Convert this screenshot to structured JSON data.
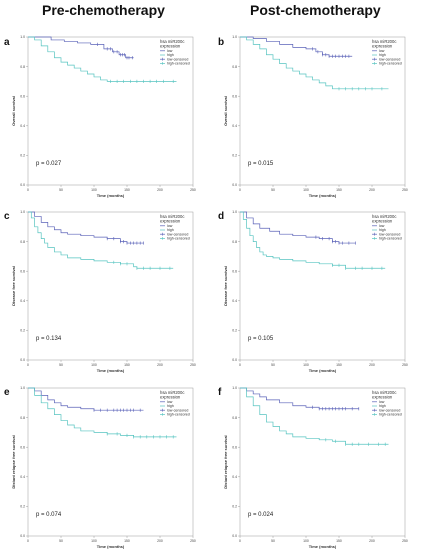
{
  "headers": {
    "left": "Pre-chemotherapy",
    "right": "Post-chemotherapy"
  },
  "colors": {
    "low": "#5a62b8",
    "high": "#56c4c0"
  },
  "legend": {
    "title_line1": "hsa miR200c",
    "title_line2": "expression",
    "entries": [
      "low",
      "high",
      "low-censored",
      "high-censored"
    ]
  },
  "chart_data": [
    {
      "type": "line",
      "panel": "a",
      "xlabel": "Time (months)",
      "ylabel": "Overall survival",
      "p_text": "p = 0.027",
      "xlim": [
        0,
        250
      ],
      "ylim": [
        0,
        1.0
      ],
      "xticks": [
        "0",
        "50",
        "100",
        "150",
        "200",
        "250"
      ],
      "yticks": [
        "0.0",
        "0.2",
        "0.4",
        "0.6",
        "0.8",
        "1.0"
      ],
      "series": [
        {
          "name": "low",
          "x": [
            0,
            15,
            35,
            55,
            75,
            95,
            115,
            128,
            138,
            148,
            160
          ],
          "y": [
            1.0,
            1.0,
            0.98,
            0.97,
            0.96,
            0.95,
            0.92,
            0.9,
            0.88,
            0.86,
            0.86
          ],
          "censored_x": [
            105,
            120,
            125,
            130,
            135,
            140,
            143,
            146,
            150,
            153,
            158
          ]
        },
        {
          "name": "high",
          "x": [
            0,
            10,
            20,
            30,
            40,
            50,
            60,
            70,
            80,
            90,
            100,
            110,
            120,
            130,
            225
          ],
          "y": [
            1.0,
            0.98,
            0.94,
            0.9,
            0.86,
            0.83,
            0.81,
            0.79,
            0.77,
            0.75,
            0.73,
            0.71,
            0.7,
            0.7,
            0.7
          ],
          "censored_x": [
            125,
            135,
            145,
            155,
            165,
            175,
            185,
            195,
            205,
            220
          ]
        }
      ]
    },
    {
      "type": "line",
      "panel": "b",
      "xlabel": "Time (months)",
      "ylabel": "Overall survival",
      "p_text": "p = 0.015",
      "xlim": [
        0,
        250
      ],
      "ylim": [
        0,
        1.0
      ],
      "xticks": [
        "0",
        "50",
        "100",
        "150",
        "200",
        "250"
      ],
      "yticks": [
        "0.0",
        "0.2",
        "0.4",
        "0.6",
        "0.8",
        "1.0"
      ],
      "series": [
        {
          "name": "low",
          "x": [
            0,
            20,
            40,
            60,
            80,
            100,
            115,
            125,
            135,
            170
          ],
          "y": [
            1.0,
            0.99,
            0.97,
            0.95,
            0.93,
            0.92,
            0.9,
            0.88,
            0.87,
            0.87
          ],
          "censored_x": [
            110,
            118,
            125,
            130,
            135,
            140,
            145,
            150,
            155,
            160,
            165
          ]
        },
        {
          "name": "high",
          "x": [
            0,
            10,
            20,
            30,
            40,
            50,
            60,
            70,
            80,
            90,
            100,
            110,
            120,
            130,
            140,
            150,
            225
          ],
          "y": [
            1.0,
            0.98,
            0.95,
            0.92,
            0.88,
            0.85,
            0.82,
            0.79,
            0.77,
            0.75,
            0.73,
            0.71,
            0.69,
            0.67,
            0.65,
            0.65,
            0.65
          ],
          "censored_x": [
            150,
            160,
            170,
            180,
            190,
            200,
            215
          ]
        }
      ]
    },
    {
      "type": "line",
      "panel": "c",
      "xlabel": "Time (months)",
      "ylabel": "Disease free survival",
      "p_text": "p = 0.134",
      "xlim": [
        0,
        250
      ],
      "ylim": [
        0,
        1.0
      ],
      "xticks": [
        "0",
        "50",
        "100",
        "150",
        "200",
        "250"
      ],
      "yticks": [
        "0.0",
        "0.2",
        "0.4",
        "0.6",
        "0.8",
        "1.0"
      ],
      "series": [
        {
          "name": "low",
          "x": [
            0,
            10,
            20,
            30,
            40,
            50,
            60,
            80,
            100,
            120,
            140,
            150,
            175
          ],
          "y": [
            1.0,
            0.97,
            0.93,
            0.9,
            0.88,
            0.86,
            0.85,
            0.84,
            0.83,
            0.82,
            0.8,
            0.79,
            0.79
          ],
          "censored_x": [
            120,
            130,
            140,
            145,
            150,
            155,
            160,
            165,
            170,
            175
          ]
        },
        {
          "name": "high",
          "x": [
            0,
            5,
            10,
            15,
            20,
            25,
            30,
            40,
            50,
            60,
            80,
            100,
            120,
            140,
            160,
            165,
            220
          ],
          "y": [
            1.0,
            0.96,
            0.9,
            0.86,
            0.82,
            0.79,
            0.76,
            0.73,
            0.71,
            0.69,
            0.68,
            0.67,
            0.66,
            0.65,
            0.63,
            0.62,
            0.62
          ],
          "censored_x": [
            130,
            140,
            150,
            165,
            175,
            185,
            200,
            215
          ]
        }
      ]
    },
    {
      "type": "line",
      "panel": "d",
      "xlabel": "Time (months)",
      "ylabel": "Disease free survival",
      "p_text": "p = 0.105",
      "xlim": [
        0,
        250
      ],
      "ylim": [
        0,
        1.0
      ],
      "xticks": [
        "0",
        "50",
        "100",
        "150",
        "200",
        "250"
      ],
      "yticks": [
        "0.0",
        "0.2",
        "0.4",
        "0.6",
        "0.8",
        "1.0"
      ],
      "series": [
        {
          "name": "low",
          "x": [
            0,
            10,
            20,
            30,
            45,
            60,
            80,
            100,
            120,
            140,
            150,
            175
          ],
          "y": [
            1.0,
            0.96,
            0.92,
            0.89,
            0.87,
            0.85,
            0.84,
            0.83,
            0.82,
            0.8,
            0.79,
            0.79
          ],
          "censored_x": [
            115,
            125,
            135,
            140,
            145,
            150,
            155,
            165,
            175
          ]
        },
        {
          "name": "high",
          "x": [
            0,
            5,
            10,
            15,
            20,
            25,
            30,
            35,
            40,
            50,
            60,
            80,
            100,
            120,
            140,
            160,
            165,
            220
          ],
          "y": [
            1.0,
            0.95,
            0.89,
            0.84,
            0.8,
            0.76,
            0.73,
            0.71,
            0.7,
            0.69,
            0.68,
            0.67,
            0.66,
            0.65,
            0.64,
            0.62,
            0.62,
            0.62
          ],
          "censored_x": [
            140,
            150,
            160,
            175,
            185,
            200,
            215
          ]
        }
      ]
    },
    {
      "type": "line",
      "panel": "e",
      "xlabel": "Time (months)",
      "ylabel": "Distant relapse free survival",
      "p_text": "p = 0.074",
      "xlim": [
        0,
        250
      ],
      "ylim": [
        0,
        1.0
      ],
      "xticks": [
        "0",
        "50",
        "100",
        "150",
        "200",
        "250"
      ],
      "yticks": [
        "0.0",
        "0.2",
        "0.4",
        "0.6",
        "0.8",
        "1.0"
      ],
      "series": [
        {
          "name": "low",
          "x": [
            0,
            10,
            20,
            30,
            40,
            50,
            60,
            80,
            100,
            110,
            175
          ],
          "y": [
            1.0,
            0.98,
            0.95,
            0.92,
            0.9,
            0.88,
            0.87,
            0.86,
            0.85,
            0.85,
            0.85
          ],
          "censored_x": [
            100,
            110,
            120,
            130,
            135,
            140,
            145,
            150,
            155,
            160,
            170
          ]
        },
        {
          "name": "high",
          "x": [
            0,
            10,
            20,
            30,
            40,
            50,
            60,
            70,
            80,
            100,
            120,
            140,
            160,
            170,
            225
          ],
          "y": [
            1.0,
            0.95,
            0.9,
            0.86,
            0.82,
            0.78,
            0.75,
            0.73,
            0.71,
            0.7,
            0.69,
            0.68,
            0.67,
            0.67,
            0.67
          ],
          "censored_x": [
            120,
            135,
            150,
            160,
            170,
            180,
            190,
            200,
            210,
            220
          ]
        }
      ]
    },
    {
      "type": "line",
      "panel": "f",
      "xlabel": "Time (months)",
      "ylabel": "Distant relapse free survival",
      "p_text": "p = 0.024",
      "xlim": [
        0,
        250
      ],
      "ylim": [
        0,
        1.0
      ],
      "xticks": [
        "0",
        "50",
        "100",
        "150",
        "200",
        "250"
      ],
      "yticks": [
        "0.0",
        "0.2",
        "0.4",
        "0.6",
        "0.8",
        "1.0"
      ],
      "series": [
        {
          "name": "low",
          "x": [
            0,
            10,
            20,
            30,
            40,
            60,
            80,
            100,
            120,
            180
          ],
          "y": [
            1.0,
            0.98,
            0.96,
            0.94,
            0.92,
            0.9,
            0.88,
            0.87,
            0.86,
            0.86
          ],
          "censored_x": [
            110,
            120,
            125,
            130,
            135,
            140,
            145,
            150,
            155,
            160,
            170,
            180
          ]
        },
        {
          "name": "high",
          "x": [
            0,
            10,
            20,
            30,
            40,
            50,
            60,
            70,
            80,
            100,
            120,
            140,
            160,
            170,
            225
          ],
          "y": [
            1.0,
            0.94,
            0.88,
            0.82,
            0.77,
            0.74,
            0.71,
            0.69,
            0.67,
            0.66,
            0.65,
            0.64,
            0.62,
            0.62,
            0.62
          ],
          "censored_x": [
            130,
            145,
            160,
            170,
            180,
            195,
            210,
            220
          ]
        }
      ]
    }
  ]
}
